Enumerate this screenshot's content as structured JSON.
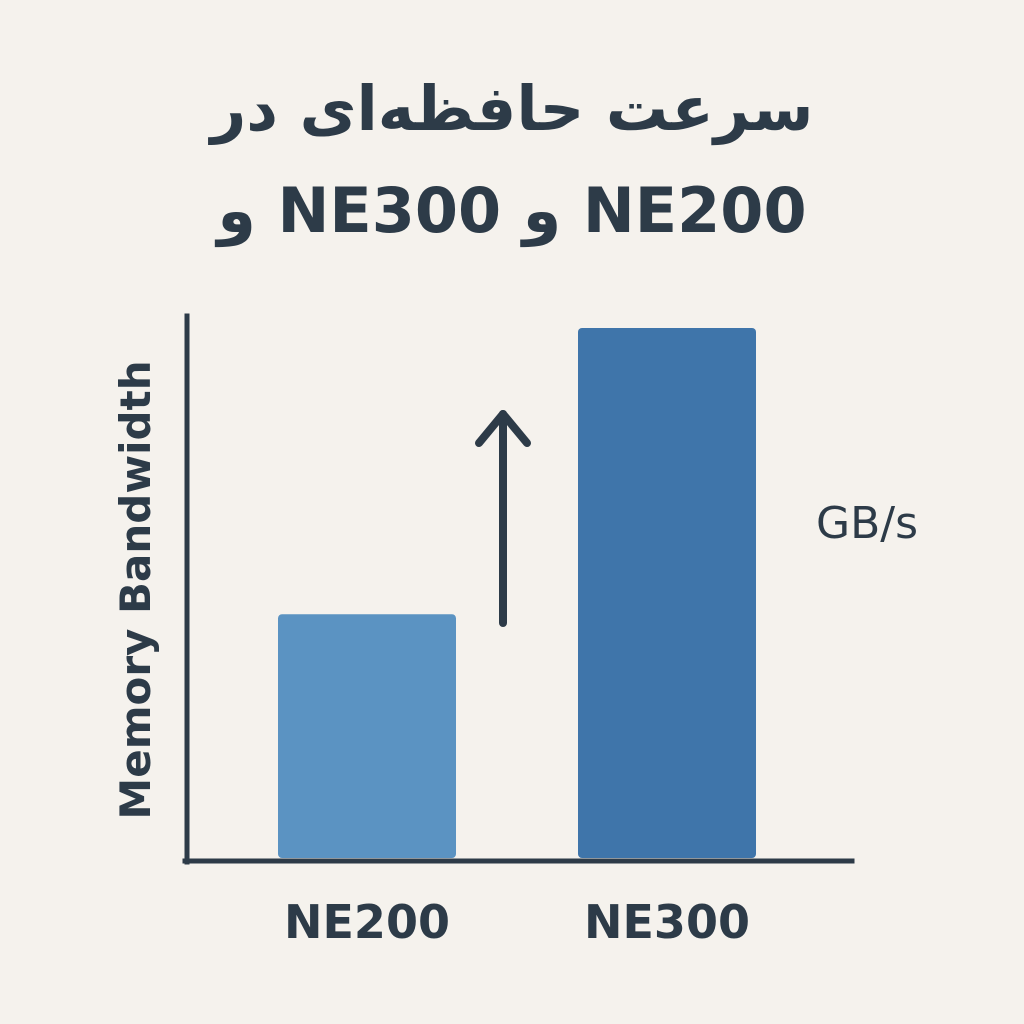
{
  "chart_data": {
    "type": "bar",
    "title_line_1": "سرعت حافظه‌ای در",
    "title_line_2": "NE200 و NE300 و",
    "categories": [
      "NE200",
      "NE300"
    ],
    "values": [
      0.46,
      1.0
    ],
    "ylabel": "Memory Bandwidth",
    "unit_label": "GB/s",
    "grid": false,
    "legend": "none",
    "annotation": "upward-arrow",
    "colors": {
      "bar_light": "#5b93c2",
      "bar_dark": "#3f75aa",
      "axis": "#2d3b48",
      "text": "#2d3b48",
      "background": "#f5f2ed"
    }
  }
}
